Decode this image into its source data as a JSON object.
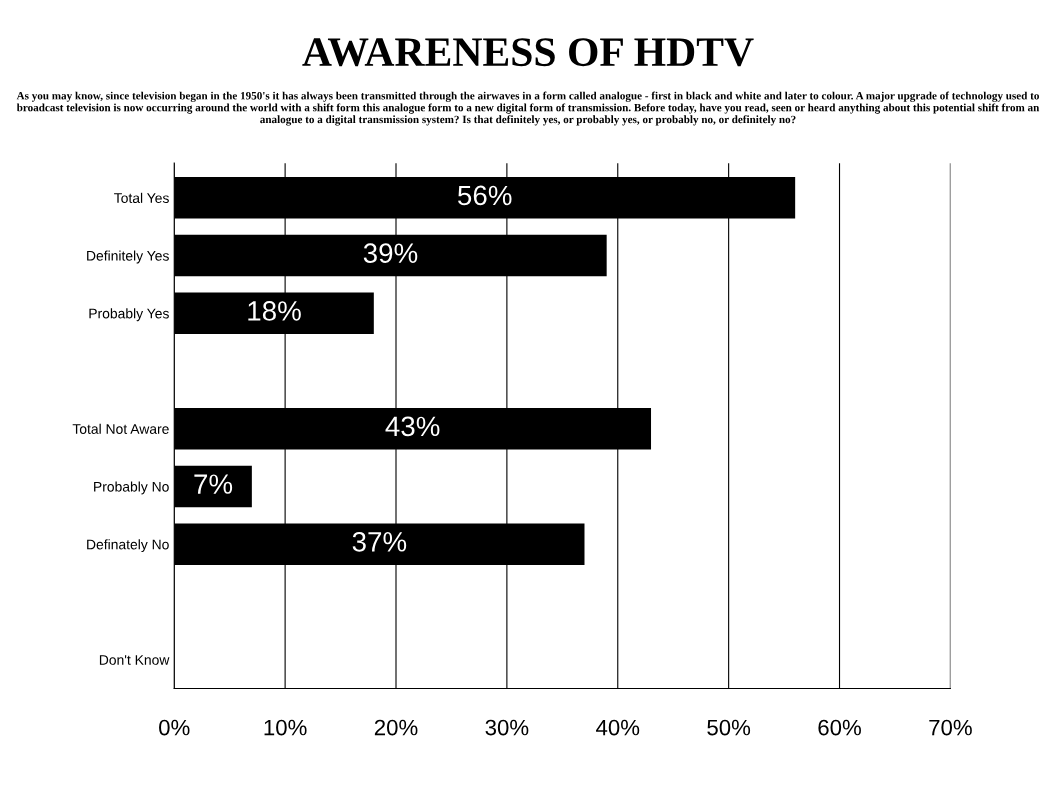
{
  "chart_data": {
    "type": "bar",
    "orientation": "horizontal",
    "title": "AWARENESS OF HDTV",
    "subtitle": "As you may know, since television began in the 1950's it has always been transmitted through the airwaves in a form called analogue - first in black and white and later to colour. A major upgrade of technology used to broadcast television is now occurring around the world with a shift form this analogue form to a new digital form of transmission. Before today, have you read, seen or heard anything about this potential shift from an analogue to a digital transmission system? Is that definitely yes, or probably yes, or probably no, or definitely no?",
    "categories": [
      "Total Yes",
      "Definitely Yes",
      "Probably Yes",
      null,
      "Total Not Aware",
      "Probably No",
      "Definately No",
      null,
      "Don't Know"
    ],
    "values": [
      56,
      39,
      18,
      null,
      43,
      7,
      37,
      null,
      null
    ],
    "value_labels": [
      "56%",
      "39%",
      "18%",
      null,
      "43%",
      "7%",
      "37%",
      null,
      null
    ],
    "color": "#000000",
    "xlim": [
      0,
      70
    ],
    "xticks": [
      {
        "value": 0,
        "label": "0%"
      },
      {
        "value": 10,
        "label": "10%"
      },
      {
        "value": 20,
        "label": "20%"
      },
      {
        "value": 30,
        "label": "30%"
      },
      {
        "value": 40,
        "label": "40%"
      },
      {
        "value": 50,
        "label": "50%"
      },
      {
        "value": 60,
        "label": "60%"
      },
      {
        "value": 70,
        "label": "70%"
      }
    ],
    "grid": "x"
  }
}
